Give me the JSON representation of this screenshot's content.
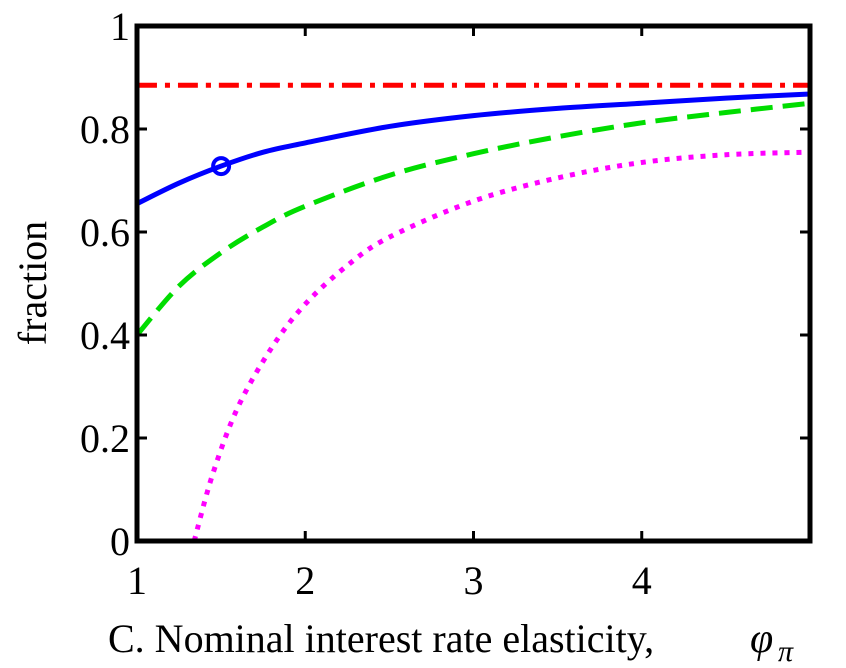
{
  "chart_data": {
    "type": "line",
    "xlabel": "C. Nominal interest rate elasticity,",
    "xlabel_symbol": "φ",
    "xlabel_subscript": "π",
    "ylabel": "fraction",
    "xlim": [
      1,
      5
    ],
    "ylim": [
      0,
      1
    ],
    "x_ticks": [
      1,
      2,
      3,
      4
    ],
    "y_ticks": [
      0,
      0.2,
      0.4,
      0.6,
      0.8,
      1
    ],
    "x_tick_labels": [
      "1",
      "2",
      "3",
      "4"
    ],
    "y_tick_labels": [
      "0",
      "0.2",
      "0.4",
      "0.6",
      "0.8",
      "1"
    ],
    "grid": false,
    "series": [
      {
        "color": "#ff0000",
        "style": "dashdot",
        "x": [
          1,
          5
        ],
        "y": [
          0.885,
          0.885
        ]
      },
      {
        "color": "#0000ff",
        "style": "solid",
        "x": [
          1,
          1.25,
          1.5,
          1.75,
          2,
          2.5,
          3,
          3.5,
          4,
          4.5,
          5
        ],
        "y": [
          0.655,
          0.695,
          0.728,
          0.755,
          0.773,
          0.805,
          0.826,
          0.84,
          0.85,
          0.86,
          0.868
        ]
      },
      {
        "color": "#00dd00",
        "style": "dashed",
        "x": [
          1,
          1.25,
          1.5,
          1.75,
          2,
          2.5,
          3,
          3.5,
          4,
          4.5,
          5
        ],
        "y": [
          0.4,
          0.495,
          0.56,
          0.61,
          0.65,
          0.71,
          0.752,
          0.785,
          0.812,
          0.832,
          0.85
        ]
      },
      {
        "color": "#ff00ff",
        "style": "dotted",
        "x": [
          1.34,
          1.45,
          1.6,
          1.8,
          2,
          2.25,
          2.5,
          3,
          3.5,
          4,
          4.5,
          5
        ],
        "y": [
          0.0,
          0.13,
          0.26,
          0.375,
          0.46,
          0.535,
          0.59,
          0.66,
          0.705,
          0.735,
          0.75,
          0.755
        ]
      }
    ],
    "markers": [
      {
        "x": 1.5,
        "y": 0.728,
        "shape": "circle",
        "color": "#0000ff"
      }
    ]
  }
}
